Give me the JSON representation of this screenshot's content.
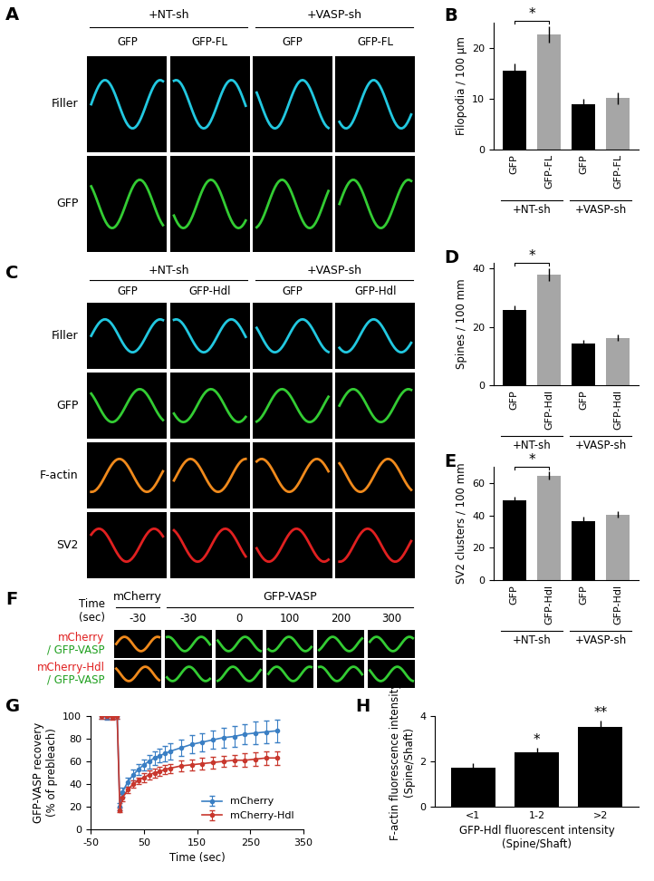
{
  "chart_data": [
    {
      "panel": "B",
      "type": "bar",
      "categories": [
        "GFP",
        "GFP-FL",
        "GFP",
        "GFP-FL"
      ],
      "groups": [
        {
          "label": "+NT-sh",
          "members": [
            0,
            1
          ]
        },
        {
          "label": "+VASP-sh",
          "members": [
            2,
            3
          ]
        }
      ],
      "values": [
        15.5,
        22.7,
        8.9,
        10.1
      ],
      "errors": [
        1.5,
        1.6,
        1.1,
        1.2
      ],
      "colors": [
        "#000000",
        "#a6a6a6",
        "#000000",
        "#a6a6a6"
      ],
      "y_label": "Filopodia / 100 µm",
      "ylim": [
        0,
        25
      ],
      "yticks": [
        0,
        10,
        20
      ],
      "significance": [
        {
          "bars": [
            0,
            1
          ],
          "label": "*"
        }
      ]
    },
    {
      "panel": "D",
      "type": "bar",
      "categories": [
        "GFP",
        "GFP-Hdl",
        "GFP",
        "GFP-Hdl"
      ],
      "groups": [
        {
          "label": "+NT-sh",
          "members": [
            0,
            1
          ]
        },
        {
          "label": "+VASP-sh",
          "members": [
            2,
            3
          ]
        }
      ],
      "values": [
        25.8,
        38.0,
        14.2,
        16.3
      ],
      "errors": [
        1.5,
        2.2,
        1.3,
        1.2
      ],
      "colors": [
        "#000000",
        "#a6a6a6",
        "#000000",
        "#a6a6a6"
      ],
      "y_label": "Spines / 100 mm",
      "ylim": [
        0,
        42
      ],
      "yticks": [
        0,
        20,
        40
      ],
      "significance": [
        {
          "bars": [
            0,
            1
          ],
          "label": "*"
        }
      ]
    },
    {
      "panel": "E",
      "type": "bar",
      "categories": [
        "GFP",
        "GFP-Hdl",
        "GFP",
        "GFP-Hdl"
      ],
      "groups": [
        {
          "label": "+NT-sh",
          "members": [
            0,
            1
          ]
        },
        {
          "label": "+VASP-sh",
          "members": [
            2,
            3
          ]
        }
      ],
      "values": [
        49.5,
        64.5,
        36.5,
        40.5
      ],
      "errors": [
        2.0,
        2.5,
        2.5,
        2.0
      ],
      "colors": [
        "#000000",
        "#a6a6a6",
        "#000000",
        "#a6a6a6"
      ],
      "y_label": "SV2 clusters / 100 mm",
      "ylim": [
        0,
        70
      ],
      "yticks": [
        0,
        20,
        40,
        60
      ],
      "significance": [
        {
          "bars": [
            0,
            1
          ],
          "label": "*"
        }
      ]
    },
    {
      "panel": "G",
      "type": "line",
      "x": [
        -30,
        -20,
        -10,
        0,
        5,
        10,
        20,
        30,
        40,
        50,
        60,
        70,
        80,
        90,
        100,
        120,
        140,
        160,
        180,
        200,
        220,
        240,
        260,
        280,
        300
      ],
      "series": [
        {
          "name": "mCherry",
          "color": "#3a7fc4",
          "marker": "o",
          "values": [
            100,
            99,
            100,
            100,
            20,
            33,
            42,
            48,
            53,
            57,
            60,
            63,
            65,
            67,
            69,
            72,
            75,
            77,
            79,
            81,
            82,
            84,
            85,
            86,
            87
          ],
          "errors": [
            2,
            2,
            2,
            2,
            3,
            4,
            4,
            5,
            5,
            5,
            6,
            6,
            6,
            7,
            7,
            7,
            8,
            8,
            8,
            9,
            9,
            9,
            10,
            10,
            10
          ]
        },
        {
          "name": "mCherry-Hdl",
          "color": "#c8372d",
          "marker": "o",
          "values": [
            100,
            100,
            99,
            100,
            17,
            28,
            35,
            40,
            43,
            46,
            48,
            50,
            51,
            53,
            54,
            56,
            57,
            58,
            59,
            60,
            61,
            61,
            62,
            63,
            63
          ],
          "errors": [
            2,
            2,
            2,
            2,
            2,
            3,
            3,
            3,
            3,
            4,
            4,
            4,
            4,
            4,
            4,
            5,
            5,
            5,
            5,
            5,
            5,
            6,
            6,
            6,
            6
          ]
        }
      ],
      "x_label": "Time (sec)",
      "y_label": "GFP-VASP recovery\n(% of prebleach)",
      "xlim": [
        -50,
        350
      ],
      "xticks": [
        -50,
        50,
        150,
        250,
        350
      ],
      "ylim": [
        0,
        100
      ],
      "yticks": [
        0,
        20,
        40,
        60,
        80,
        100
      ],
      "legend": "lower right"
    },
    {
      "panel": "H",
      "type": "bar",
      "categories": [
        "<1",
        "1-2",
        ">2"
      ],
      "values": [
        1.72,
        2.4,
        3.52
      ],
      "errors": [
        0.22,
        0.2,
        0.27
      ],
      "colors": [
        "#000000",
        "#000000",
        "#000000"
      ],
      "x_label": "GFP-Hdl fluorescent intensity\n(Spine/Shaft)",
      "y_label": "F-actin fluorescence intensity\n(Spine/Shaft)",
      "ylim": [
        0,
        4
      ],
      "yticks": [
        0,
        2,
        4
      ],
      "significance": [
        {
          "bars": [
            1
          ],
          "label": "*"
        },
        {
          "bars": [
            2
          ],
          "label": "**"
        }
      ]
    }
  ],
  "image_panels": [
    {
      "panel": "A",
      "groups": [
        {
          "label": "+NT-sh",
          "span": 2
        },
        {
          "label": "+VASP-sh",
          "span": 2
        }
      ],
      "columns": [
        "GFP",
        "GFP-FL",
        "GFP",
        "GFP-FL"
      ],
      "rows": [
        "Filler",
        "GFP"
      ],
      "row_colors": [
        "#22c8e0",
        "#33cc33"
      ]
    },
    {
      "panel": "C",
      "groups": [
        {
          "label": "+NT-sh",
          "span": 2
        },
        {
          "label": "+VASP-sh",
          "span": 2
        }
      ],
      "columns": [
        "GFP",
        "GFP-Hdl",
        "GFP",
        "GFP-Hdl"
      ],
      "rows": [
        "Filler",
        "GFP",
        "F-actin",
        "SV2"
      ],
      "row_colors": [
        "#22c8e0",
        "#33cc33",
        "#f08a1c",
        "#e02020"
      ]
    },
    {
      "panel": "F",
      "header_row_label": "Time\n(sec)",
      "groups": [
        {
          "label": "mCherry",
          "span": 1
        },
        {
          "label": "GFP-VASP",
          "span": 5
        }
      ],
      "columns": [
        "-30",
        "-30",
        "0",
        "100",
        "200",
        "300"
      ],
      "rows": [
        [
          "mCherry",
          "/ GFP-VASP"
        ],
        [
          "mCherry-Hdl",
          "/ GFP-VASP"
        ]
      ],
      "row_label_colors": [
        "#e02020",
        "#20a020"
      ],
      "column_colors": [
        "#f08a1c",
        "#33cc33",
        "#33cc33",
        "#33cc33",
        "#33cc33",
        "#33cc33"
      ]
    }
  ]
}
